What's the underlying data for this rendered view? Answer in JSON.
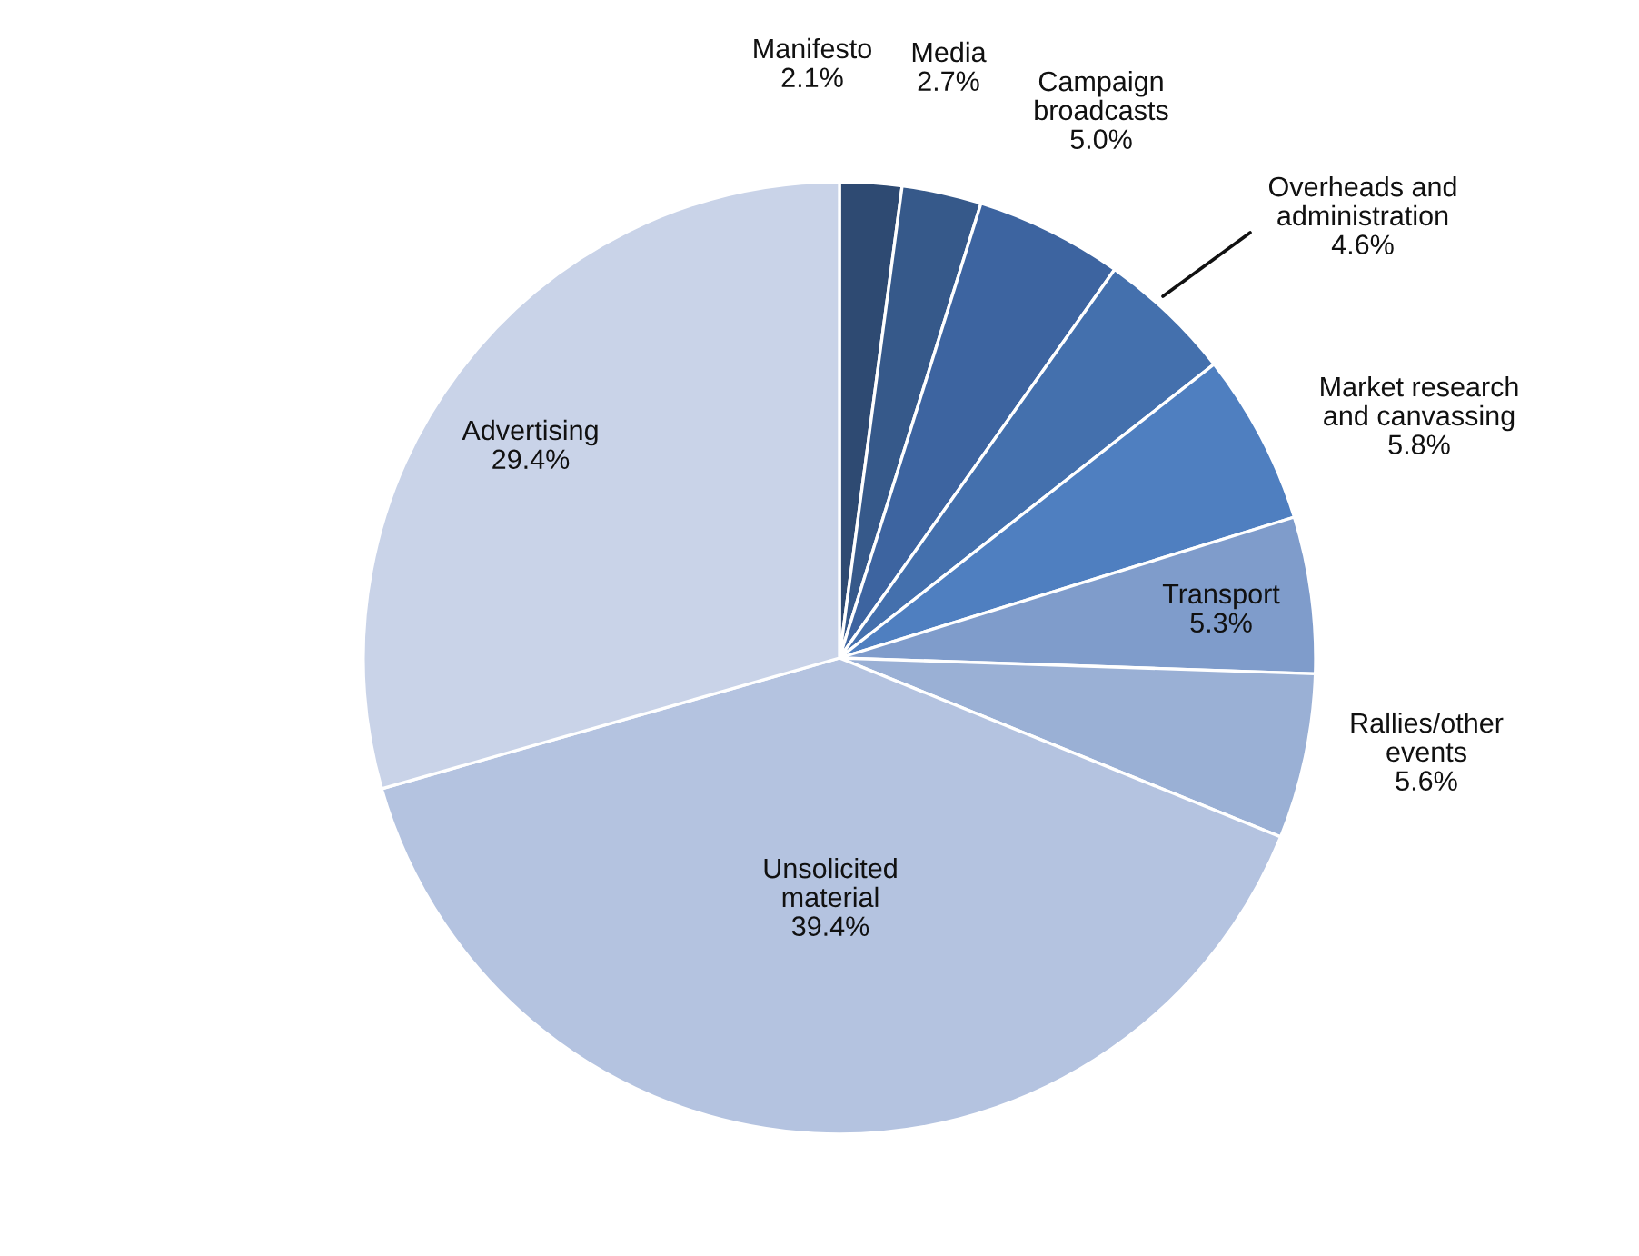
{
  "chart_data": {
    "type": "pie",
    "categories": [
      "Manifesto",
      "Media",
      "Campaign\nbroadcasts",
      "Overheads and\nadministration",
      "Market research\nand canvassing",
      "Transport",
      "Rallies/other\nevents",
      "Unsolicited\nmaterial",
      "Advertising"
    ],
    "values": [
      2.1,
      2.7,
      5.0,
      4.6,
      5.8,
      5.3,
      5.6,
      39.4,
      29.4
    ],
    "value_labels": [
      "2.1%",
      "2.7%",
      "5.0%",
      "4.6%",
      "5.8%",
      "5.3%",
      "5.6%",
      "39.4%",
      "29.4%"
    ],
    "colors": [
      "#2e4a72",
      "#36598a",
      "#3d64a0",
      "#4470ad",
      "#4f7fc0",
      "#7f9ccb",
      "#9ab0d5",
      "#b4c3e0",
      "#c9d3e8"
    ],
    "legend": false
  }
}
